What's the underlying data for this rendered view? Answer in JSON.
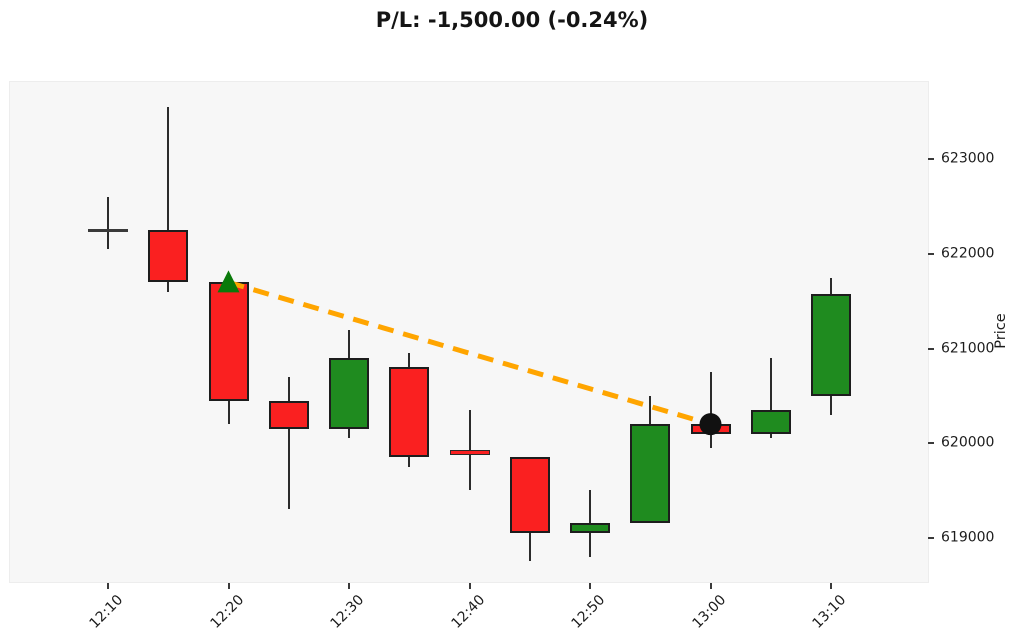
{
  "chart_data": {
    "type": "candlestick",
    "title": "P/L: -1,500.00 (-0.24%)",
    "ylabel": "Price",
    "x_tick_labels": [
      "12:10",
      "12:20",
      "12:30",
      "12:40",
      "12:50",
      "13:00",
      "13:10"
    ],
    "x_tick_candle_indices": [
      0,
      2,
      4,
      6,
      8,
      10,
      12
    ],
    "y_ticks": [
      619000,
      620000,
      621000,
      622000,
      623000
    ],
    "ylim": [
      618520,
      623830
    ],
    "grid": false,
    "legend_position": "none",
    "candles": [
      {
        "time": "12:10",
        "open": 622250,
        "high": 622600,
        "low": 622050,
        "close": 622250,
        "dir": "flat"
      },
      {
        "time": "12:15",
        "open": 622250,
        "high": 623550,
        "low": 621600,
        "close": 621700,
        "dir": "down"
      },
      {
        "time": "12:20",
        "open": 621700,
        "high": 621700,
        "low": 620200,
        "close": 620450,
        "dir": "down"
      },
      {
        "time": "12:25",
        "open": 620450,
        "high": 620700,
        "low": 619300,
        "close": 620150,
        "dir": "down"
      },
      {
        "time": "12:30",
        "open": 620150,
        "high": 621200,
        "low": 620050,
        "close": 620900,
        "dir": "up"
      },
      {
        "time": "12:35",
        "open": 620800,
        "high": 620950,
        "low": 619750,
        "close": 619850,
        "dir": "down"
      },
      {
        "time": "12:40",
        "open": 619900,
        "high": 620350,
        "low": 619500,
        "close": 619900,
        "dir": "flat-down"
      },
      {
        "time": "12:45",
        "open": 619850,
        "high": 619850,
        "low": 618750,
        "close": 619050,
        "dir": "down"
      },
      {
        "time": "12:50",
        "open": 619050,
        "high": 619500,
        "low": 618800,
        "close": 619150,
        "dir": "up"
      },
      {
        "time": "12:55",
        "open": 619150,
        "high": 620500,
        "low": 619150,
        "close": 620200,
        "dir": "up"
      },
      {
        "time": "13:00",
        "open": 620200,
        "high": 620750,
        "low": 619950,
        "close": 620100,
        "dir": "down"
      },
      {
        "time": "13:05",
        "open": 620100,
        "high": 620900,
        "low": 620050,
        "close": 620350,
        "dir": "up"
      },
      {
        "time": "13:10",
        "open": 620500,
        "high": 621750,
        "low": 620300,
        "close": 621580,
        "dir": "up"
      }
    ],
    "trade": {
      "entry": {
        "time": "12:20",
        "candle_index": 2,
        "price": 621700,
        "marker": "triangle-up"
      },
      "exit": {
        "time": "13:00",
        "candle_index": 10,
        "price": 620200,
        "marker": "circle"
      },
      "line_style": "dashed"
    },
    "colors": {
      "up": "#1f8b1f",
      "down": "#fa2020",
      "flat": "#3a3a3a",
      "wick": "#2b2b2b",
      "candle_border": "#1d1d1d",
      "trade_line": "#ffa500",
      "entry_marker": "#0a7a0a",
      "exit_marker": "#111111",
      "plot_background": "#f7f7f7"
    }
  }
}
